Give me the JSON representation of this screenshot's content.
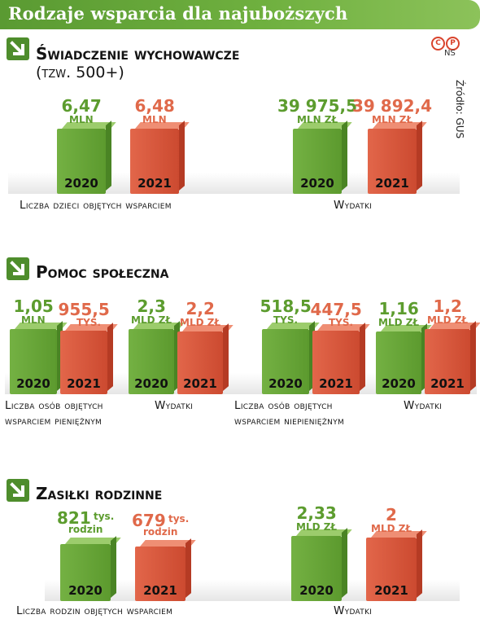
{
  "title": "Rodzaje wsparcia dla najuboższych",
  "source": "Źródło: GUS",
  "logo_letters": [
    "C",
    "P"
  ],
  "logo_sub": "NS",
  "colors": {
    "y2020": "#5c9c2e",
    "y2021": "#e0694a",
    "header": "#5a9a32"
  },
  "sections": [
    {
      "title": "Świadczenie wychowawcze",
      "subtitle": "(tzw. 500+)",
      "icon": "arrow-down-right-icon"
    },
    {
      "title": "Pomoc społeczna",
      "icon": "arrow-down-right-icon"
    },
    {
      "title": "Zasiłki rodzinne",
      "icon": "arrow-down-right-icon"
    }
  ],
  "chart_data": [
    {
      "type": "bar",
      "caption": [
        "Liczba dzieci objętych wsparciem"
      ],
      "categories": [
        "2020",
        "2021"
      ],
      "labels": [
        "6,47",
        "6,48"
      ],
      "units": [
        "mln",
        "mln"
      ],
      "values": [
        6.47,
        6.48
      ]
    },
    {
      "type": "bar",
      "caption": [
        "Wydatki"
      ],
      "categories": [
        "2020",
        "2021"
      ],
      "labels": [
        "39 975,5",
        "39 892,4"
      ],
      "units": [
        "mln zł",
        "mln zł"
      ],
      "values": [
        39975.5,
        39892.4
      ]
    },
    {
      "type": "bar",
      "caption": [
        "Liczba osób objętych",
        "wsparciem pieniężnym"
      ],
      "categories": [
        "2020",
        "2021"
      ],
      "labels": [
        "1,05",
        "955,5"
      ],
      "units": [
        "mln",
        "tys."
      ],
      "values": [
        1050,
        955.5
      ]
    },
    {
      "type": "bar",
      "caption": [
        "Wydatki"
      ],
      "categories": [
        "2020",
        "2021"
      ],
      "labels": [
        "2,3",
        "2,2"
      ],
      "units": [
        "mld zł",
        "mld zł"
      ],
      "values": [
        2.3,
        2.2
      ]
    },
    {
      "type": "bar",
      "caption": [
        "Liczba osób objętych",
        "wsparciem niepieniężnym"
      ],
      "categories": [
        "2020",
        "2021"
      ],
      "labels": [
        "518,5",
        "447,5"
      ],
      "units": [
        "tys.",
        "tys."
      ],
      "values": [
        518.5,
        447.5
      ]
    },
    {
      "type": "bar",
      "caption": [
        "Wydatki"
      ],
      "categories": [
        "2020",
        "2021"
      ],
      "labels": [
        "1,16",
        "1,2"
      ],
      "units": [
        "mld zł",
        "mld zł"
      ],
      "values": [
        1.16,
        1.2
      ]
    },
    {
      "type": "bar",
      "caption": [
        "Liczba rodzin objętych wsparciem"
      ],
      "categories": [
        "2020",
        "2021"
      ],
      "labels": [
        "821",
        "679"
      ],
      "units": [
        "tys. rodzin",
        "tys. rodzin"
      ],
      "values": [
        821,
        679
      ]
    },
    {
      "type": "bar",
      "caption": [
        "Wydatki"
      ],
      "categories": [
        "2020",
        "2021"
      ],
      "labels": [
        "2,33",
        "2"
      ],
      "units": [
        "mld zł",
        "mld zł"
      ],
      "values": [
        2.33,
        2
      ]
    }
  ]
}
